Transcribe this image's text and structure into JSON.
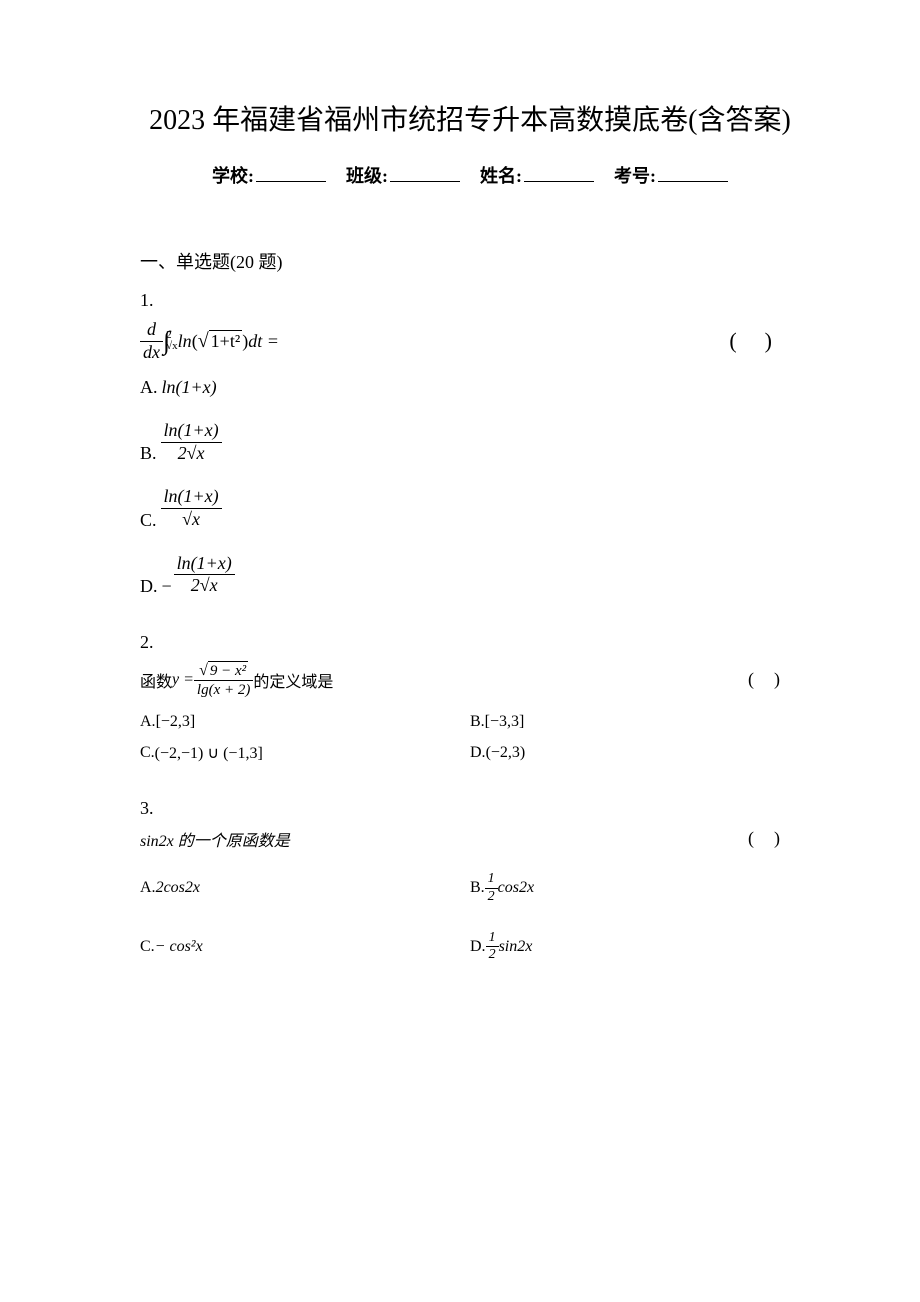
{
  "title": "2023 年福建省福州市统招专升本高数摸底卷(含答案)",
  "info": {
    "school_label": "学校:",
    "class_label": "班级:",
    "name_label": "姓名:",
    "exam_id_label": "考号:"
  },
  "section_header": "一、单选题(20 题)",
  "questions": {
    "q1": {
      "num": "1.",
      "paren": "()",
      "stem": {
        "d": "d",
        "dx": "dx",
        "int_lower": "√x",
        "int_upper": "2",
        "ln": "ln",
        "sqrt_body": "1+t²",
        "dt_eq": "dt ="
      },
      "options": {
        "A": {
          "label": "A.",
          "expr": "ln(1+x)"
        },
        "B": {
          "label": "B.",
          "num": "ln(1+x)",
          "den": "2√x"
        },
        "C": {
          "label": "C.",
          "num": "ln(1+x)",
          "den": "√x"
        },
        "D": {
          "label": "D.",
          "neg": "−",
          "num": "ln(1+x)",
          "den": "2√x"
        }
      }
    },
    "q2": {
      "num": "2.",
      "paren": "()",
      "stem_prefix": "函数 ",
      "stem_y": "y = ",
      "num_sqrt": "9 − x²",
      "den": "lg(x + 2)",
      "stem_suffix": " 的定义域是",
      "options": {
        "A": {
          "label": "A.",
          "text": "[−2,3]"
        },
        "B": {
          "label": "B.",
          "text": "[−3,3]"
        },
        "C": {
          "label": "C.",
          "text": "(−2,−1) ∪ (−1,3]"
        },
        "D": {
          "label": "D.",
          "text": "(−2,3)"
        }
      }
    },
    "q3": {
      "num": "3.",
      "paren": "()",
      "stem": "sin2x 的一个原函数是",
      "options": {
        "A": {
          "label": "A.",
          "text": "2cos2x"
        },
        "B": {
          "label": "B.",
          "frac_num": "1",
          "frac_den": "2",
          "suffix": "cos2x"
        },
        "C": {
          "label": "C.",
          "text": "− cos²x"
        },
        "D": {
          "label": "D.",
          "frac_num": "1",
          "frac_den": "2",
          "suffix": "sin2x"
        }
      }
    }
  },
  "colors": {
    "text": "#000000",
    "bg": "#ffffff"
  },
  "fonts": {
    "title_size": 28,
    "body_size": 18,
    "small_size": 16
  }
}
